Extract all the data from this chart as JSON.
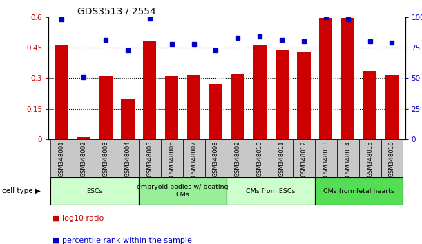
{
  "title": "GDS3513 / 2554",
  "samples": [
    "GSM348001",
    "GSM348002",
    "GSM348003",
    "GSM348004",
    "GSM348005",
    "GSM348006",
    "GSM348007",
    "GSM348008",
    "GSM348009",
    "GSM348010",
    "GSM348011",
    "GSM348012",
    "GSM348013",
    "GSM348014",
    "GSM348015",
    "GSM348016"
  ],
  "log10_ratio": [
    0.46,
    0.01,
    0.31,
    0.195,
    0.485,
    0.31,
    0.315,
    0.27,
    0.32,
    0.46,
    0.435,
    0.425,
    0.595,
    0.595,
    0.335,
    0.315
  ],
  "percentile_rank": [
    98,
    51,
    81,
    73,
    99,
    78,
    78,
    73,
    83,
    84,
    81,
    80,
    100,
    98,
    80,
    79
  ],
  "bar_color": "#cc0000",
  "dot_color": "#0000cc",
  "left_ylim": [
    0,
    0.6
  ],
  "left_yticks": [
    0,
    0.15,
    0.3,
    0.45,
    0.6
  ],
  "left_yticklabels": [
    "0",
    "0.15",
    "0.3",
    "0.45",
    "0.6"
  ],
  "right_ylim": [
    0,
    100
  ],
  "right_yticks": [
    0,
    25,
    50,
    75,
    100
  ],
  "right_yticklabels": [
    "0",
    "25",
    "50",
    "75",
    "100%"
  ],
  "cell_type_groups": [
    {
      "label": "ESCs",
      "start": 0,
      "end": 4,
      "color": "#ccffcc"
    },
    {
      "label": "embryoid bodies w/ beating\nCMs",
      "start": 4,
      "end": 8,
      "color": "#99ee99"
    },
    {
      "label": "CMs from ESCs",
      "start": 8,
      "end": 12,
      "color": "#ccffcc"
    },
    {
      "label": "CMs from fetal hearts",
      "start": 12,
      "end": 16,
      "color": "#55dd55"
    }
  ],
  "cell_type_label": "cell type",
  "legend_bar_label": "log10 ratio",
  "legend_dot_label": "percentile rank within the sample",
  "left_tick_color": "#cc0000",
  "right_tick_color": "#0000cc",
  "xtick_bg_color": "#c8c8c8",
  "background_color": "white"
}
